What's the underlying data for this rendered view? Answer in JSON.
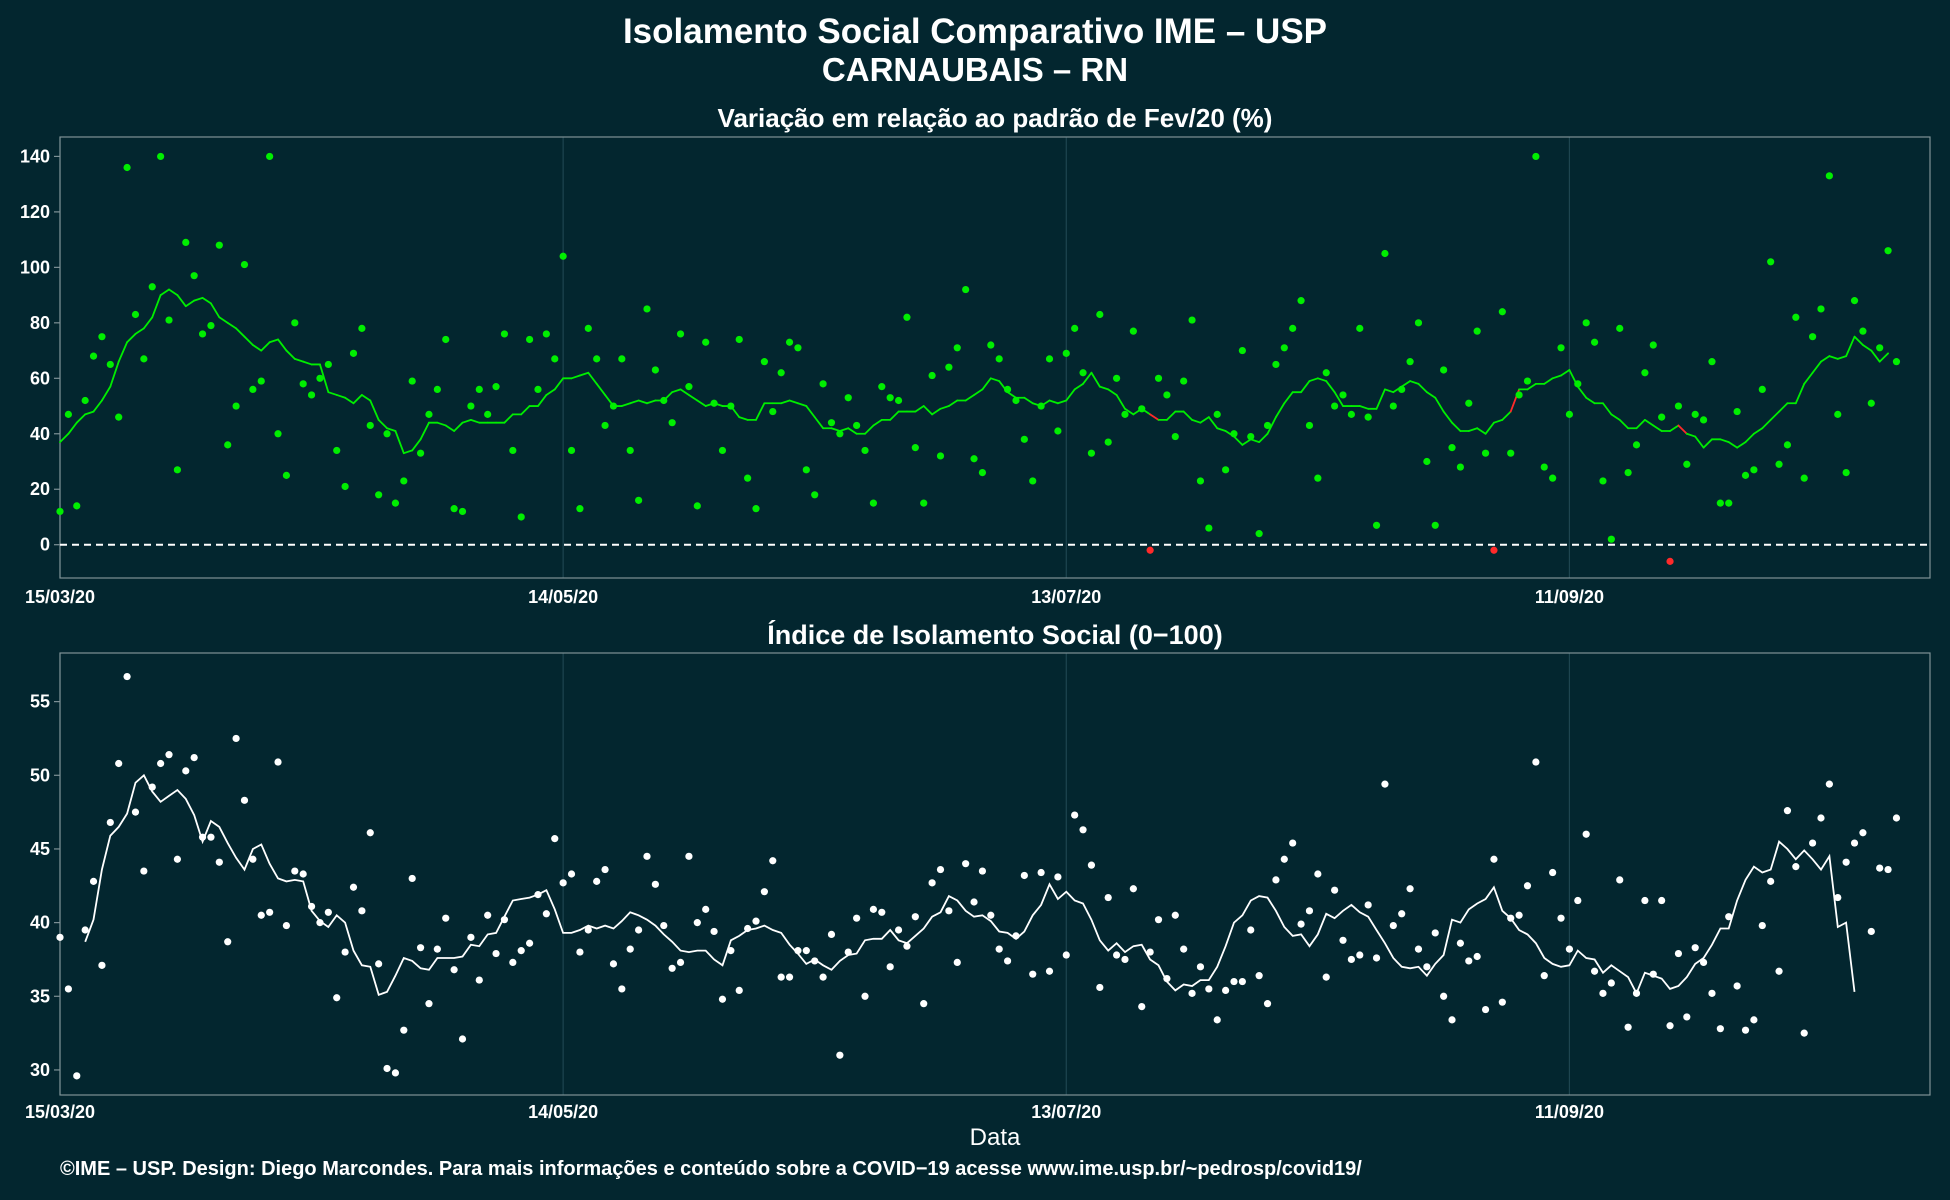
{
  "title_line1": "Isolamento Social Comparativo IME – USP",
  "title_line2": "CARNAUBAIS – RN",
  "footer": "©IME – USP. Design: Diego Marcondes. Para mais informações e conteúdo sobre a COVID−19 acesse www.ime.usp.br/~pedrosp/covid19/",
  "colors": {
    "background": "#03262f",
    "panel_border": "#7f9296",
    "grid": "#1e4550",
    "positive": "#00ee00",
    "negative": "#ff2a2a",
    "index": "#ffffff"
  },
  "chart_data": [
    {
      "type": "scatter",
      "title": "Variação em relação ao padrão de Fev/20 (%)",
      "xlabel": "",
      "ylabel": "",
      "x_tick_labels": [
        "15/03/20",
        "14/05/20",
        "13/07/20",
        "11/09/20"
      ],
      "x_tick_days": [
        0,
        60,
        120,
        180
      ],
      "xlim_days": [
        0,
        223
      ],
      "ylim": [
        -12,
        147
      ],
      "y_ticks": [
        0,
        20,
        40,
        60,
        80,
        100,
        120,
        140
      ],
      "reference_line": 0,
      "series": [
        {
          "kind": "daily",
          "values": [
            12,
            47,
            14,
            52,
            68,
            75,
            65,
            46,
            136,
            83,
            67,
            93,
            140,
            81,
            27,
            109,
            97,
            76,
            79,
            108,
            36,
            50,
            101,
            56,
            59,
            140,
            40,
            25,
            80,
            58,
            54,
            60,
            65,
            34,
            21,
            69,
            78,
            43,
            18,
            40,
            15,
            23,
            59,
            33,
            47,
            56,
            74,
            13,
            12,
            50,
            56,
            47,
            57,
            76,
            34,
            10,
            74,
            56,
            76,
            67,
            104,
            34,
            13,
            78,
            67,
            43,
            50,
            67,
            34,
            16,
            85,
            63,
            52,
            44,
            76,
            57,
            14,
            73,
            51,
            34,
            50,
            74,
            24,
            13,
            66,
            48,
            62,
            73,
            71,
            27,
            18,
            58,
            44,
            40,
            53,
            43,
            34,
            15,
            57,
            53,
            52,
            82,
            35,
            15,
            61,
            32,
            64,
            71,
            92,
            31,
            26,
            72,
            67,
            56,
            52,
            38,
            23,
            50,
            67,
            41,
            69,
            78,
            62,
            33,
            83,
            37,
            60,
            47,
            77,
            49,
            -2,
            60,
            54,
            39,
            59,
            81,
            23,
            6,
            47,
            27,
            40,
            70,
            39,
            4,
            43,
            65,
            71,
            78,
            88,
            43,
            24,
            62,
            50,
            54,
            47,
            78,
            46,
            7,
            105,
            50,
            56,
            66,
            80,
            30,
            7,
            63,
            35,
            28,
            51,
            77,
            33,
            -2,
            84,
            33,
            54,
            59,
            140,
            28,
            24,
            71,
            47,
            58,
            80,
            73,
            23,
            2,
            78,
            26,
            36,
            62,
            72,
            46,
            -6,
            50,
            29,
            47,
            45,
            66,
            15,
            15,
            48,
            25,
            27,
            56,
            102,
            29,
            36,
            82,
            24,
            75,
            85,
            133,
            47,
            26,
            88,
            77,
            51,
            71,
            106,
            66
          ]
        },
        {
          "kind": "moving_average",
          "start_day": 0,
          "values": [
            37,
            40,
            44,
            47,
            48,
            52,
            57,
            66,
            73,
            76,
            78,
            82,
            90,
            92,
            90,
            86,
            88,
            89,
            87,
            82,
            80,
            78,
            75,
            72,
            70,
            73,
            74,
            70,
            67,
            66,
            65,
            65,
            55,
            54,
            53,
            51,
            54,
            52,
            45,
            42,
            41,
            33,
            34,
            38,
            44,
            44,
            43,
            41,
            44,
            45,
            44,
            44,
            44,
            44,
            47,
            47,
            50,
            50,
            54,
            56,
            60,
            60,
            61,
            62,
            58,
            54,
            50,
            50,
            51,
            52,
            51,
            52,
            52,
            55,
            56,
            54,
            52,
            50,
            51,
            50,
            50,
            46,
            45,
            45,
            51,
            51,
            51,
            52,
            51,
            50,
            46,
            42,
            42,
            41,
            42,
            40,
            40,
            43,
            45,
            45,
            48,
            48,
            48,
            50,
            47,
            49,
            50,
            52,
            52,
            54,
            56,
            60,
            59,
            55,
            53,
            53,
            51,
            50,
            52,
            51,
            52,
            56,
            58,
            62,
            57,
            56,
            54,
            49,
            47,
            49,
            47,
            45,
            45,
            48,
            48,
            45,
            44,
            46,
            42,
            41,
            39,
            36,
            38,
            37,
            40,
            46,
            51,
            55,
            55,
            59,
            60,
            59,
            55,
            50,
            50,
            50,
            49,
            49,
            56,
            55,
            57,
            59,
            58,
            55,
            53,
            48,
            44,
            41,
            41,
            42,
            40,
            44,
            45,
            48,
            56,
            56,
            58,
            58,
            60,
            61,
            63,
            57,
            53,
            51,
            51,
            47,
            45,
            42,
            42,
            45,
            43,
            41,
            41,
            43,
            40,
            39,
            35,
            38,
            38,
            37,
            35,
            37,
            40,
            42,
            45,
            48,
            51,
            51,
            58,
            62,
            66,
            68,
            67,
            68,
            75,
            72,
            70,
            66,
            69
          ]
        }
      ]
    },
    {
      "type": "scatter",
      "title": "Índice de Isolamento Social (0−100)",
      "xlabel": "Data",
      "ylabel": "",
      "x_tick_labels": [
        "15/03/20",
        "14/05/20",
        "13/07/20",
        "11/09/20"
      ],
      "x_tick_days": [
        0,
        60,
        120,
        180
      ],
      "xlim_days": [
        0,
        223
      ],
      "ylim": [
        28.3,
        58.3
      ],
      "y_ticks": [
        30,
        35,
        40,
        45,
        50,
        55
      ],
      "series": [
        {
          "kind": "daily",
          "values": [
            39.0,
            35.5,
            29.6,
            39.5,
            42.8,
            37.1,
            46.8,
            50.8,
            56.7,
            47.5,
            43.5,
            49.2,
            50.8,
            51.4,
            44.3,
            50.3,
            51.2,
            45.8,
            45.8,
            44.1,
            38.7,
            52.5,
            48.3,
            44.3,
            40.5,
            40.7,
            50.9,
            39.8,
            43.5,
            43.3,
            41.1,
            40.0,
            40.7,
            34.9,
            38.0,
            42.4,
            40.8,
            46.1,
            37.2,
            30.1,
            29.8,
            32.7,
            43.0,
            38.3,
            34.5,
            38.2,
            40.3,
            36.8,
            32.1,
            39.0,
            36.1,
            40.5,
            37.9,
            40.2,
            37.3,
            38.1,
            38.6,
            41.9,
            40.6,
            45.7,
            42.7,
            43.3,
            38.0,
            39.5,
            42.8,
            43.6,
            37.2,
            35.5,
            38.2,
            39.5,
            44.5,
            42.6,
            39.8,
            36.9,
            37.3,
            44.5,
            40.0,
            40.9,
            39.4,
            34.8,
            38.1,
            35.4,
            39.6,
            40.1,
            42.1,
            44.2,
            36.3,
            36.3,
            38.1,
            38.1,
            37.4,
            36.3,
            39.2,
            31.0,
            38.0,
            40.3,
            35.0,
            40.9,
            40.7,
            37.0,
            39.5,
            38.4,
            40.4,
            34.5,
            42.7,
            43.6,
            40.8,
            37.3,
            44.0,
            41.4,
            43.5,
            40.5,
            38.2,
            37.4,
            39.1,
            43.2,
            36.5,
            43.4,
            36.7,
            43.1,
            37.8,
            47.3,
            46.3,
            43.9,
            35.6,
            41.7,
            37.8,
            37.5,
            42.3,
            34.3,
            38.0,
            40.2,
            36.2,
            40.5,
            38.2,
            35.2,
            37.0,
            35.5,
            33.4,
            35.4,
            36.0,
            36.0,
            39.5,
            36.4,
            34.5,
            42.9,
            44.3,
            45.4,
            39.9,
            40.8,
            43.3,
            36.3,
            42.2,
            38.8,
            37.5,
            37.8,
            41.2,
            37.6,
            49.4,
            39.8,
            40.6,
            42.3,
            38.2,
            37.0,
            39.3,
            35.0,
            33.4,
            38.6,
            37.4,
            37.7,
            34.1,
            44.3,
            34.6,
            40.3,
            40.5,
            42.5,
            50.9,
            36.4,
            43.4,
            40.3,
            38.2,
            41.5,
            46.0,
            36.7,
            35.2,
            35.9,
            42.9,
            32.9,
            35.2,
            41.5,
            36.5,
            41.5,
            33.0,
            37.9,
            33.6,
            38.3,
            37.3,
            35.2,
            32.8,
            40.4,
            35.7,
            32.7,
            33.4,
            39.8,
            42.8,
            36.7,
            47.6,
            43.8,
            32.5,
            45.4,
            47.1,
            49.4,
            41.7,
            44.1,
            45.4,
            46.1,
            39.4,
            43.7,
            43.6,
            47.1
          ]
        },
        {
          "kind": "moving_average",
          "start_day": 3,
          "values": [
            38.7,
            40.2,
            43.6,
            45.9,
            46.5,
            47.4,
            49.5,
            50.0,
            48.9,
            48.2,
            48.6,
            49.0,
            48.4,
            47.3,
            45.5,
            46.9,
            46.5,
            45.4,
            44.4,
            43.6,
            45.0,
            45.3,
            44.0,
            43.0,
            42.8,
            42.9,
            42.8,
            40.8,
            40.1,
            39.7,
            40.5,
            40.0,
            38.1,
            37.1,
            37.0,
            35.1,
            35.3,
            36.4,
            37.6,
            37.4,
            36.9,
            36.8,
            37.6,
            37.6,
            37.6,
            37.7,
            38.5,
            38.4,
            39.2,
            39.3,
            40.4,
            41.5,
            41.6,
            41.7,
            41.9,
            42.2,
            40.9,
            39.3,
            39.3,
            39.5,
            39.8,
            39.6,
            39.8,
            39.6,
            40.1,
            40.7,
            40.5,
            40.2,
            39.8,
            39.2,
            38.7,
            38.1,
            38.0,
            38.1,
            38.1,
            37.5,
            37.1,
            38.8,
            39.1,
            39.5,
            39.6,
            39.8,
            39.5,
            39.3,
            38.5,
            37.9,
            37.2,
            37.5,
            37.1,
            36.8,
            37.4,
            37.8,
            37.9,
            38.8,
            38.9,
            38.9,
            39.5,
            38.8,
            38.6,
            39.1,
            39.6,
            40.4,
            40.7,
            41.8,
            41.5,
            40.8,
            40.4,
            40.5,
            40.1,
            39.4,
            39.3,
            38.9,
            39.4,
            40.5,
            41.2,
            42.6,
            41.6,
            42.1,
            41.5,
            41.3,
            40.2,
            38.8,
            38.1,
            38.6,
            38.0,
            38.4,
            38.5,
            37.5,
            37.1,
            36.0,
            35.4,
            35.8,
            35.7,
            36.1,
            36.1,
            37.0,
            38.4,
            40.0,
            40.5,
            41.5,
            41.8,
            41.7,
            40.8,
            39.7,
            39.1,
            39.2,
            38.4,
            39.2,
            40.6,
            40.3,
            40.8,
            41.2,
            40.7,
            40.4,
            39.5,
            38.6,
            37.6,
            37.0,
            36.9,
            37.0,
            36.4,
            37.2,
            37.8,
            40.2,
            40.0,
            40.9,
            41.3,
            41.6,
            42.4,
            40.8,
            40.3,
            39.5,
            39.2,
            38.6,
            37.6,
            37.2,
            37.0,
            37.1,
            38.1,
            37.6,
            37.5,
            36.6,
            37.1,
            36.7,
            36.3,
            35.2,
            36.6,
            36.4,
            36.2,
            35.5,
            35.7,
            36.3,
            37.2,
            37.6,
            38.5,
            39.6,
            39.6,
            41.5,
            42.9,
            43.8,
            43.4,
            43.6,
            45.5,
            45.0,
            44.3,
            44.9,
            44.3,
            43.6,
            44.5,
            39.7,
            40.0,
            35.3
          ]
        }
      ]
    }
  ]
}
